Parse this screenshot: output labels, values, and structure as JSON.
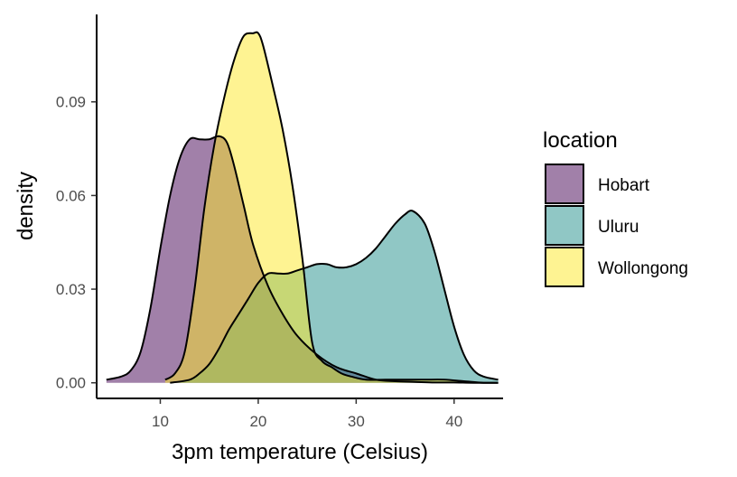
{
  "chart_data": {
    "type": "area",
    "xlabel": "3pm temperature (Celsius)",
    "ylabel": "density",
    "xlim": [
      3.5,
      45
    ],
    "ylim": [
      -0.005,
      0.118
    ],
    "xticks": [
      10,
      20,
      30,
      40
    ],
    "yticks": [
      0.0,
      0.03,
      0.06,
      0.09
    ],
    "ytick_labels": [
      "0.00",
      "0.03",
      "0.06",
      "0.09"
    ],
    "grid": false,
    "legend": {
      "title": "location",
      "position": "right"
    },
    "fill_opacity": 0.5,
    "series": [
      {
        "name": "Hobart",
        "color": "#440154",
        "x": [
          4.5,
          6,
          7,
          8,
          9,
          10,
          11,
          12,
          13,
          14,
          15,
          16,
          16.8,
          17.5,
          18.5,
          19.5,
          21,
          22.5,
          24,
          26,
          28,
          30,
          32,
          34,
          36,
          38,
          40,
          42,
          44.5
        ],
        "y": [
          0.001,
          0.002,
          0.004,
          0.01,
          0.024,
          0.043,
          0.06,
          0.072,
          0.078,
          0.078,
          0.078,
          0.079,
          0.077,
          0.07,
          0.057,
          0.044,
          0.031,
          0.022,
          0.015,
          0.009,
          0.005,
          0.003,
          0.001,
          0.0005,
          0.0003,
          0.0001,
          0.0001,
          0.0,
          0.0
        ]
      },
      {
        "name": "Uluru",
        "color": "#21908C",
        "x": [
          11,
          13,
          14,
          15,
          16,
          17,
          18,
          19,
          20,
          21,
          22,
          23,
          24,
          25,
          26,
          27,
          28,
          29,
          30,
          31,
          32,
          33,
          34,
          35,
          35.8,
          37,
          38,
          39,
          40,
          41,
          42,
          43,
          44.5
        ],
        "y": [
          0.0,
          0.001,
          0.003,
          0.006,
          0.011,
          0.017,
          0.022,
          0.027,
          0.032,
          0.035,
          0.035,
          0.035,
          0.036,
          0.037,
          0.038,
          0.038,
          0.037,
          0.037,
          0.038,
          0.04,
          0.043,
          0.047,
          0.051,
          0.054,
          0.055,
          0.051,
          0.042,
          0.03,
          0.018,
          0.009,
          0.004,
          0.002,
          0.001
        ]
      },
      {
        "name": "Wollongong",
        "color": "#FDE725",
        "x": [
          10.5,
          11.5,
          12.5,
          13.5,
          14.5,
          15.5,
          16.5,
          17.5,
          18.5,
          19.5,
          20,
          20.5,
          21.5,
          22.5,
          23.5,
          24.5,
          25.5,
          26.5,
          27.5,
          28.5,
          29.5,
          31,
          33,
          35,
          37,
          39,
          41,
          43,
          44.5
        ],
        "y": [
          0.001,
          0.003,
          0.01,
          0.03,
          0.056,
          0.076,
          0.091,
          0.103,
          0.111,
          0.112,
          0.112,
          0.108,
          0.095,
          0.081,
          0.063,
          0.04,
          0.013,
          0.007,
          0.005,
          0.003,
          0.002,
          0.001,
          0.001,
          0.001,
          0.001,
          0.001,
          0.0005,
          0.0,
          0.0
        ]
      }
    ]
  }
}
